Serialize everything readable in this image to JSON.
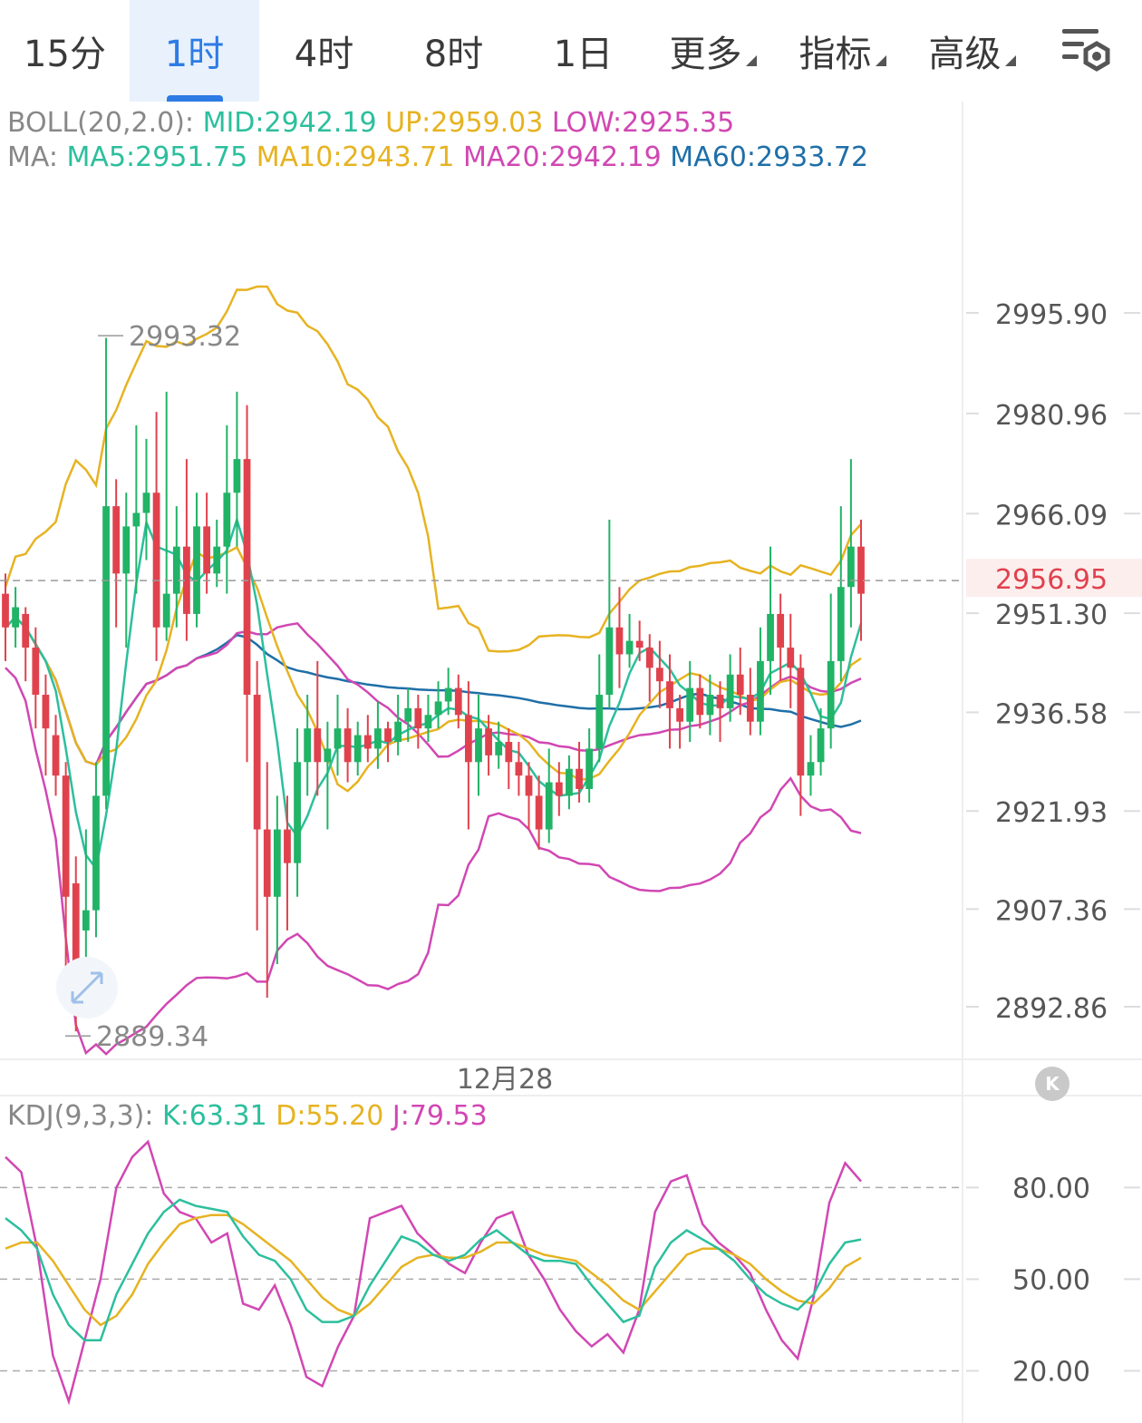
{
  "tabs": [
    {
      "label": "15分",
      "active": false,
      "dropdown": false
    },
    {
      "label": "1时",
      "active": true,
      "dropdown": false
    },
    {
      "label": "4时",
      "active": false,
      "dropdown": false
    },
    {
      "label": "8时",
      "active": false,
      "dropdown": false
    },
    {
      "label": "1日",
      "active": false,
      "dropdown": false
    },
    {
      "label": "更多",
      "active": false,
      "dropdown": true
    },
    {
      "label": "指标",
      "active": false,
      "dropdown": true
    },
    {
      "label": "高级",
      "active": false,
      "dropdown": true
    }
  ],
  "icons": {
    "settings": "chart-settings-icon",
    "scroll": "scroll-to-latest-icon"
  },
  "colors": {
    "up": "#21b366",
    "down": "#e0424d",
    "accent": "#2d7be5",
    "mid": "#2cbf9d",
    "upper": "#e6b322",
    "lower": "#d147b3",
    "ma60": "#1f6fa8"
  },
  "chart_data": [
    {
      "type": "candlestick",
      "indicators": {
        "boll": {
          "label": "BOLL(20,2.0):",
          "mid": "MID:2942.19",
          "up": "UP:2959.03",
          "low": "LOW:2925.35"
        },
        "ma": {
          "label": "MA:",
          "ma5": "MA5:2951.75",
          "ma10": "MA10:2943.71",
          "ma20": "MA20:2942.19",
          "ma60": "MA60:2933.72"
        }
      },
      "y_axis_labels": [
        "2995.90",
        "2980.96",
        "2966.09",
        "2951.30",
        "2936.58",
        "2921.93",
        "2907.36",
        "2892.86"
      ],
      "current_price": "2956.95",
      "current_price_value": 2956.95,
      "high_marker": "2993.32",
      "low_marker": "2889.34",
      "x_axis_label": "12月28",
      "ylim": [
        2886,
        3020
      ],
      "candles": [
        [
          2955,
          2950,
          2958,
          2945
        ],
        [
          2950,
          2953,
          2956,
          2947
        ],
        [
          2952,
          2947,
          2953,
          2942
        ],
        [
          2947,
          2940,
          2950,
          2935
        ],
        [
          2940,
          2935,
          2943,
          2928
        ],
        [
          2934,
          2928,
          2937,
          2925
        ],
        [
          2928,
          2910,
          2930,
          2897
        ],
        [
          2912,
          2900,
          2916,
          2890
        ],
        [
          2905,
          2908,
          2920,
          2898
        ],
        [
          2908,
          2925,
          2930,
          2904
        ],
        [
          2925,
          2968,
          2993,
          2923
        ],
        [
          2968,
          2958,
          2972,
          2950
        ],
        [
          2958,
          2965,
          2970,
          2947
        ],
        [
          2965,
          2967,
          2980,
          2955
        ],
        [
          2967,
          2970,
          2978,
          2960
        ],
        [
          2970,
          2950,
          2982,
          2945
        ],
        [
          2950,
          2955,
          2985,
          2948
        ],
        [
          2955,
          2962,
          2968,
          2950
        ],
        [
          2962,
          2952,
          2975,
          2948
        ],
        [
          2952,
          2965,
          2970,
          2950
        ],
        [
          2965,
          2958,
          2970,
          2955
        ],
        [
          2958,
          2962,
          2966,
          2956
        ],
        [
          2962,
          2970,
          2980,
          2955
        ],
        [
          2970,
          2975,
          2985,
          2962
        ],
        [
          2975,
          2940,
          2983,
          2930
        ],
        [
          2940,
          2920,
          2945,
          2905
        ],
        [
          2920,
          2910,
          2930,
          2895
        ],
        [
          2910,
          2920,
          2925,
          2900
        ],
        [
          2920,
          2915,
          2925,
          2905
        ],
        [
          2915,
          2930,
          2935,
          2910
        ],
        [
          2930,
          2935,
          2940,
          2925
        ],
        [
          2935,
          2930,
          2945,
          2925
        ],
        [
          2930,
          2932,
          2936,
          2920
        ],
        [
          2932,
          2935,
          2940,
          2928
        ],
        [
          2935,
          2930,
          2938,
          2927
        ],
        [
          2930,
          2934,
          2936,
          2928
        ],
        [
          2934,
          2932,
          2937,
          2930
        ],
        [
          2932,
          2935,
          2939,
          2929
        ],
        [
          2935,
          2933,
          2936,
          2930
        ],
        [
          2933,
          2936,
          2940,
          2931
        ],
        [
          2936,
          2938,
          2941,
          2933
        ],
        [
          2938,
          2935,
          2940,
          2932
        ],
        [
          2935,
          2937,
          2940,
          2933
        ],
        [
          2937,
          2939,
          2942,
          2935
        ],
        [
          2939,
          2941,
          2944,
          2937
        ],
        [
          2941,
          2937,
          2943,
          2935
        ],
        [
          2937,
          2930,
          2942,
          2920
        ],
        [
          2930,
          2935,
          2940,
          2925
        ],
        [
          2935,
          2931,
          2937,
          2928
        ],
        [
          2931,
          2933,
          2936,
          2929
        ],
        [
          2933,
          2930,
          2935,
          2926
        ],
        [
          2930,
          2928,
          2933,
          2925
        ],
        [
          2928,
          2925,
          2930,
          2920
        ],
        [
          2925,
          2920,
          2928,
          2917
        ],
        [
          2920,
          2927,
          2932,
          2918
        ],
        [
          2927,
          2925,
          2930,
          2922
        ],
        [
          2925,
          2929,
          2931,
          2923
        ],
        [
          2929,
          2926,
          2933,
          2924
        ],
        [
          2926,
          2932,
          2935,
          2924
        ],
        [
          2932,
          2940,
          2946,
          2930
        ],
        [
          2940,
          2950,
          2966,
          2938
        ],
        [
          2950,
          2946,
          2956,
          2941
        ],
        [
          2946,
          2948,
          2952,
          2944
        ],
        [
          2948,
          2947,
          2951,
          2945
        ],
        [
          2947,
          2944,
          2949,
          2939
        ],
        [
          2944,
          2942,
          2948,
          2938
        ],
        [
          2942,
          2938,
          2946,
          2932
        ],
        [
          2938,
          2936,
          2940,
          2932
        ],
        [
          2936,
          2941,
          2945,
          2933
        ],
        [
          2941,
          2937,
          2943,
          2935
        ],
        [
          2937,
          2940,
          2943,
          2934
        ],
        [
          2940,
          2938,
          2942,
          2933
        ],
        [
          2938,
          2943,
          2946,
          2936
        ],
        [
          2943,
          2940,
          2947,
          2937
        ],
        [
          2940,
          2936,
          2944,
          2934
        ],
        [
          2936,
          2945,
          2950,
          2934
        ],
        [
          2945,
          2952,
          2962,
          2940
        ],
        [
          2952,
          2947,
          2955,
          2942
        ],
        [
          2947,
          2944,
          2952,
          2938
        ],
        [
          2944,
          2928,
          2946,
          2922
        ],
        [
          2928,
          2930,
          2934,
          2925
        ],
        [
          2930,
          2935,
          2938,
          2928
        ],
        [
          2935,
          2945,
          2955,
          2932
        ],
        [
          2945,
          2956,
          2968,
          2942
        ],
        [
          2956,
          2962,
          2975,
          2950
        ],
        [
          2962,
          2955,
          2966,
          2948
        ]
      ],
      "series": [
        {
          "name": "MA5",
          "color": "#2cbf9d"
        },
        {
          "name": "MA10",
          "color": "#e6b322"
        },
        {
          "name": "MA20",
          "color": "#d147b3"
        },
        {
          "name": "MA60",
          "color": "#1f6fa8"
        },
        {
          "name": "MID",
          "color": "#2cbf9d"
        },
        {
          "name": "UP",
          "color": "#e6b322"
        },
        {
          "name": "LOW",
          "color": "#d147b3"
        }
      ]
    },
    {
      "type": "line",
      "indicator": {
        "label": "KDJ(9,3,3):",
        "k": "K:63.31",
        "d": "D:55.20",
        "j": "J:79.53"
      },
      "y_axis_labels": [
        "80.00",
        "50.00",
        "20.00"
      ],
      "y_ticks": [
        80,
        50,
        20
      ],
      "ylim": [
        5,
        100
      ],
      "series": [
        {
          "name": "K",
          "color": "#2cbf9d",
          "values": [
            70,
            66,
            60,
            45,
            35,
            30,
            30,
            45,
            55,
            65,
            72,
            76,
            74,
            73,
            72,
            64,
            58,
            56,
            50,
            40,
            36,
            36,
            38,
            48,
            56,
            64,
            62,
            58,
            56,
            58,
            63,
            66,
            62,
            58,
            56,
            56,
            55,
            48,
            42,
            36,
            38,
            54,
            62,
            66,
            63,
            60,
            56,
            50,
            45,
            42,
            40,
            45,
            55,
            62,
            63
          ]
        },
        {
          "name": "D",
          "color": "#e6b322",
          "values": [
            60,
            62,
            62,
            56,
            48,
            40,
            35,
            38,
            45,
            55,
            62,
            68,
            70,
            71,
            71,
            68,
            64,
            60,
            56,
            50,
            44,
            40,
            38,
            42,
            48,
            54,
            57,
            58,
            57,
            57,
            59,
            62,
            62,
            60,
            58,
            57,
            56,
            52,
            48,
            43,
            40,
            46,
            52,
            58,
            60,
            60,
            58,
            55,
            50,
            46,
            43,
            42,
            47,
            54,
            57
          ]
        },
        {
          "name": "J",
          "color": "#d147b3",
          "values": [
            90,
            85,
            60,
            25,
            10,
            30,
            50,
            80,
            90,
            95,
            78,
            72,
            70,
            62,
            65,
            42,
            40,
            48,
            35,
            18,
            15,
            28,
            38,
            70,
            72,
            74,
            65,
            60,
            55,
            52,
            62,
            70,
            72,
            58,
            50,
            40,
            33,
            28,
            32,
            26,
            40,
            72,
            82,
            84,
            68,
            62,
            58,
            52,
            40,
            30,
            24,
            44,
            75,
            88,
            82
          ]
        }
      ]
    }
  ]
}
